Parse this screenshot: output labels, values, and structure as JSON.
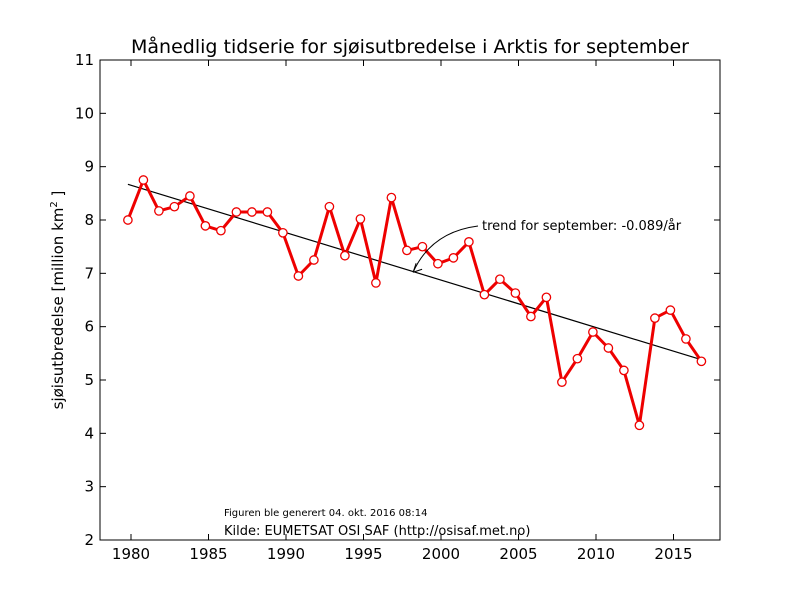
{
  "chart_data": {
    "type": "line",
    "title": "Månedlig tidserie for sjøisutbredelse i Arktis for september",
    "ylabel": "sjøisutbredelse [million km",
    "ylabel_sup": "2",
    "ylabel_end": " ]",
    "xlim": [
      1978,
      2018
    ],
    "ylim": [
      2,
      11
    ],
    "x_ticks": [
      1980,
      1985,
      1990,
      1995,
      2000,
      2005,
      2010,
      2015
    ],
    "y_ticks": [
      2,
      3,
      4,
      5,
      6,
      7,
      8,
      9,
      10,
      11
    ],
    "series": [
      {
        "color": "#ee0000",
        "x": [
          1979.8,
          1980.8,
          1981.8,
          1982.8,
          1983.8,
          1984.8,
          1985.8,
          1986.8,
          1987.8,
          1988.8,
          1989.8,
          1990.8,
          1991.8,
          1992.8,
          1993.8,
          1994.8,
          1995.8,
          1996.8,
          1997.8,
          1998.8,
          1999.8,
          2000.8,
          2001.8,
          2002.8,
          2003.8,
          2004.8,
          2005.8,
          2006.8,
          2007.8,
          2008.8,
          2009.8,
          2010.8,
          2011.8,
          2012.8,
          2013.8,
          2014.8,
          2015.8,
          2016.8
        ],
        "values": [
          8.0,
          8.75,
          8.17,
          8.25,
          8.45,
          7.89,
          7.8,
          8.15,
          8.15,
          8.15,
          7.76,
          6.95,
          7.25,
          8.25,
          7.33,
          8.02,
          6.82,
          8.42,
          7.43,
          7.5,
          7.18,
          7.29,
          7.59,
          6.6,
          6.89,
          6.63,
          6.19,
          6.55,
          4.96,
          5.4,
          5.9,
          5.6,
          5.18,
          4.15,
          6.16,
          6.31,
          5.77,
          5.35
        ]
      }
    ],
    "trend": {
      "color": "#000000",
      "x": [
        1979.8,
        2016.8
      ],
      "values": [
        8.67,
        5.38
      ]
    },
    "annotation": {
      "text": "trend for september: -0.089/år",
      "target_x": 1998.2,
      "target_y": 7.02
    },
    "footnote": "Figuren ble generert 04. okt. 2016 08:14",
    "source": "Kilde: EUMETSAT OSI SAF (http://osisaf.met.no)"
  }
}
